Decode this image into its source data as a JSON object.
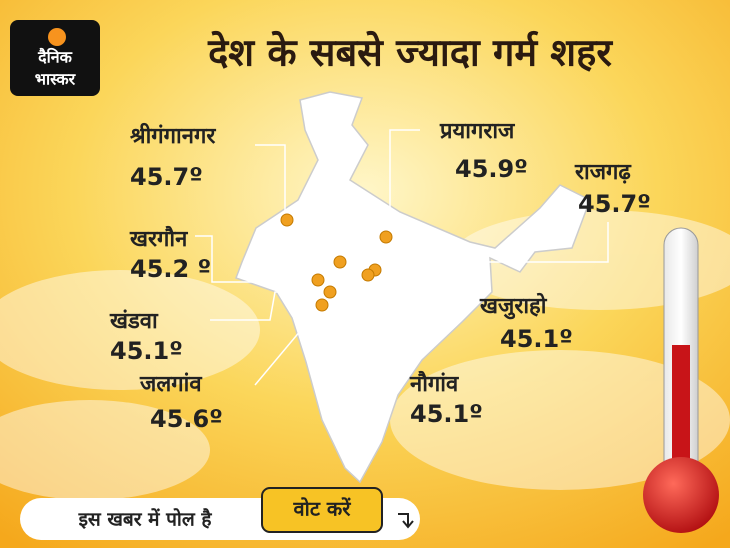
{
  "header": {
    "title": "देश के सबसे ज्यादा गर्म शहर",
    "logo_line1": "दैनिक",
    "logo_line2": "भास्कर"
  },
  "cities": [
    {
      "name": "श्रीगंगानगर",
      "temperature": "45.7º"
    },
    {
      "name": "प्रयागराज",
      "temperature": "45.9º"
    },
    {
      "name": "राजगढ़",
      "temperature": "45.7º"
    },
    {
      "name": "खरगौन",
      "temperature": "45.2 º"
    },
    {
      "name": "खंडवा",
      "temperature": "45.1º"
    },
    {
      "name": "जलगांव",
      "temperature": "45.6º"
    },
    {
      "name": "खजुराहो",
      "temperature": "45.1º"
    },
    {
      "name": "नौगांव",
      "temperature": "45.1º"
    }
  ],
  "poll": {
    "text": "इस खबर में पोल है",
    "button": "वोट करें"
  }
}
